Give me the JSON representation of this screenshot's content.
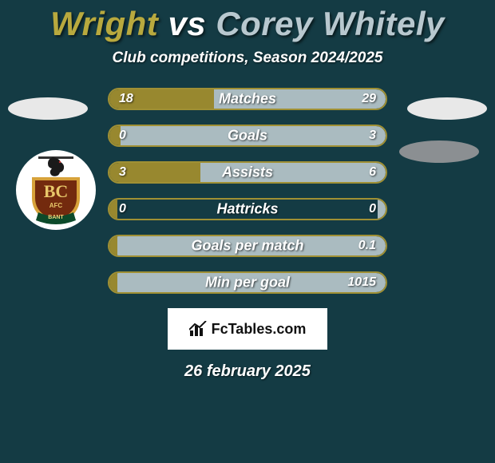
{
  "title": {
    "player1": "Wright",
    "vs": "vs",
    "player2": "Corey Whitely",
    "color1": "#b8a93e",
    "color_vs": "#ffffff",
    "color2": "#b8c8cf"
  },
  "subtitle": "Club competitions, Season 2024/2025",
  "bars": {
    "track_width": 350,
    "track_border": "#a09034",
    "fill_left": "#98882f",
    "fill_right": "#aabbc0",
    "items": [
      {
        "label": "Matches",
        "left": "18",
        "right": "29",
        "left_pct": 38,
        "right_pct": 62
      },
      {
        "label": "Goals",
        "left": "0",
        "right": "3",
        "left_pct": 4,
        "right_pct": 96
      },
      {
        "label": "Assists",
        "left": "3",
        "right": "6",
        "left_pct": 33,
        "right_pct": 67
      },
      {
        "label": "Hattricks",
        "left": "0",
        "right": "0",
        "left_pct": 3,
        "right_pct": 3
      },
      {
        "label": "Goals per match",
        "left": "",
        "right": "0.1",
        "left_pct": 3,
        "right_pct": 97
      },
      {
        "label": "Min per goal",
        "left": "",
        "right": "1015",
        "left_pct": 3,
        "right_pct": 97
      }
    ]
  },
  "club_badge": {
    "initials": "BC",
    "sub": "AFC",
    "banner": "BANT",
    "shield_fill": "#732a0e",
    "shield_stroke": "#d7a23a"
  },
  "watermark": {
    "text": "FcTables.com"
  },
  "date": "26 february 2025",
  "colors": {
    "background": "#143b44",
    "pill": "#e8e8e8",
    "pill_dark": "#8b8f92"
  }
}
